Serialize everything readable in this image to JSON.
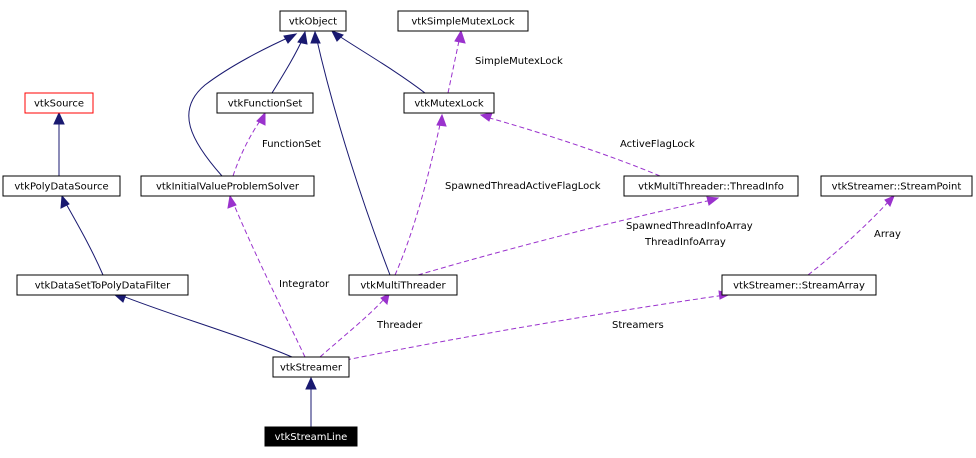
{
  "nodes": {
    "vtkObject": "vtkObject",
    "vtkSimpleMutexLock": "vtkSimpleMutexLock",
    "vtkSource": "vtkSource",
    "vtkFunctionSet": "vtkFunctionSet",
    "vtkMutexLock": "vtkMutexLock",
    "vtkPolyDataSource": "vtkPolyDataSource",
    "vtkInitialValueProblemSolver": "vtkInitialValueProblemSolver",
    "vtkMultiThreaderThreadInfo": "vtkMultiThreader::ThreadInfo",
    "vtkStreamerStreamPoint": "vtkStreamer::StreamPoint",
    "vtkDataSetToPolyDataFilter": "vtkDataSetToPolyDataFilter",
    "vtkMultiThreader": "vtkMultiThreader",
    "vtkStreamerStreamArray": "vtkStreamer::StreamArray",
    "vtkStreamer": "vtkStreamer",
    "vtkStreamLine": "vtkStreamLine"
  },
  "edge_labels": {
    "simple_mutex_lock": "SimpleMutexLock",
    "function_set": "FunctionSet",
    "active_flag_lock": "ActiveFlagLock",
    "spawned_thread_active_flag_lock": "SpawnedThreadActiveFlagLock",
    "spawned_thread_info_array": "SpawnedThreadInfoArray",
    "thread_info_array": "ThreadInfoArray",
    "array": "Array",
    "integrator": "Integrator",
    "threader": "Threader",
    "streamers": "Streamers"
  },
  "colors": {
    "inheritance_edge": "#191970",
    "usage_edge": "#9a32cd",
    "highlight_border": "#ff0000",
    "current_node_fill": "#000000"
  }
}
